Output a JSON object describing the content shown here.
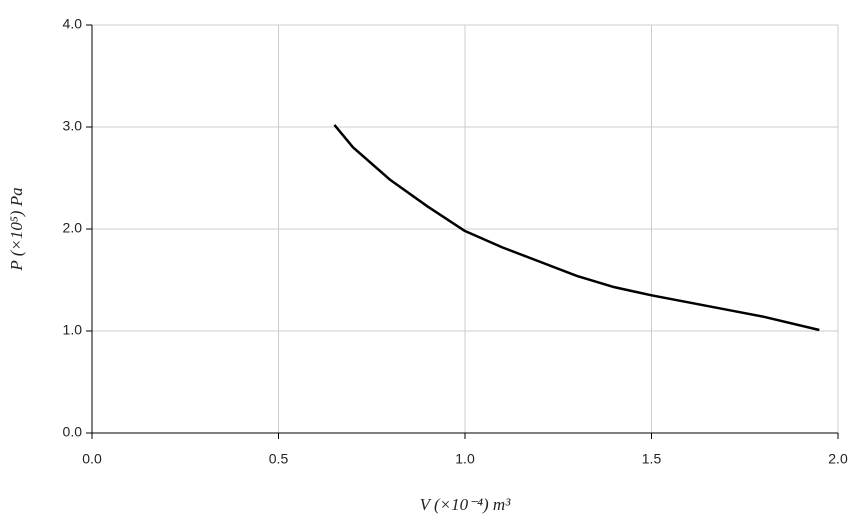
{
  "chart_data": {
    "type": "line",
    "x_label": "V (×10⁻⁴) m³",
    "y_label": "P (×10⁵) Pa",
    "x": [
      0.65,
      0.7,
      0.8,
      0.9,
      1.0,
      1.1,
      1.2,
      1.3,
      1.4,
      1.5,
      1.6,
      1.7,
      1.8,
      1.95
    ],
    "series": [
      {
        "color": "#000000",
        "values": [
          3.02,
          2.8,
          2.48,
          2.22,
          1.98,
          1.82,
          1.68,
          1.54,
          1.43,
          1.35,
          1.28,
          1.21,
          1.14,
          1.01
        ]
      }
    ],
    "xlim": [
      0,
      2
    ],
    "ylim": [
      0,
      4
    ],
    "xticks": [
      {
        "value": 0,
        "label": "0.0"
      },
      0.5,
      {
        "value": 1,
        "label": "1.0"
      },
      1.5,
      {
        "value": 2,
        "label": "2.0"
      }
    ],
    "yticks": [
      {
        "value": 0,
        "label": "0.0"
      },
      {
        "value": 1,
        "label": "1.0"
      },
      {
        "value": 2,
        "label": "2.0"
      },
      {
        "value": 3,
        "label": "3.0"
      },
      {
        "value": 4,
        "label": "4.0"
      }
    ],
    "grid": true
  }
}
